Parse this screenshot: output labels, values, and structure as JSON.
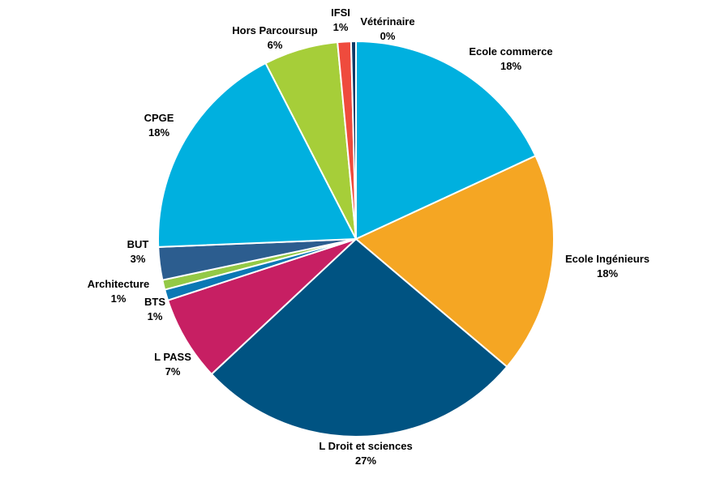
{
  "chart_data": {
    "type": "pie",
    "title": "",
    "slices": [
      {
        "label": "Ecole commerce",
        "value": 18.2,
        "percent_label": "18%",
        "color": "#00B0DF"
      },
      {
        "label": "Ecole Ingénieurs",
        "value": 18.2,
        "percent_label": "18%",
        "color": "#F5A623"
      },
      {
        "label": "L Droit et sciences",
        "value": 27.0,
        "percent_label": "27%",
        "color": "#005382"
      },
      {
        "label": "L PASS",
        "value": 7.0,
        "percent_label": "7%",
        "color": "#C71F63"
      },
      {
        "label": "BTS",
        "value": 0.9,
        "percent_label": "1%",
        "color": "#0B78B4"
      },
      {
        "label": "Architecture",
        "value": 0.8,
        "percent_label": "1%",
        "color": "#94C946"
      },
      {
        "label": "BUT",
        "value": 2.7,
        "percent_label": "3%",
        "color": "#2C5D8F"
      },
      {
        "label": "CPGE",
        "value": 18.2,
        "percent_label": "18%",
        "color": "#00B0DF"
      },
      {
        "label": "Hors Parcoursup",
        "value": 6.1,
        "percent_label": "6%",
        "color": "#A6CE39"
      },
      {
        "label": "IFSI",
        "value": 1.1,
        "percent_label": "1%",
        "color": "#EF4B3D"
      },
      {
        "label": "Vétérinaire",
        "value": 0.4,
        "percent_label": "0%",
        "color": "#0D3A66"
      }
    ],
    "start_angle_deg": 0,
    "direction": "clockwise",
    "legend": "none (labels next to slices)"
  }
}
